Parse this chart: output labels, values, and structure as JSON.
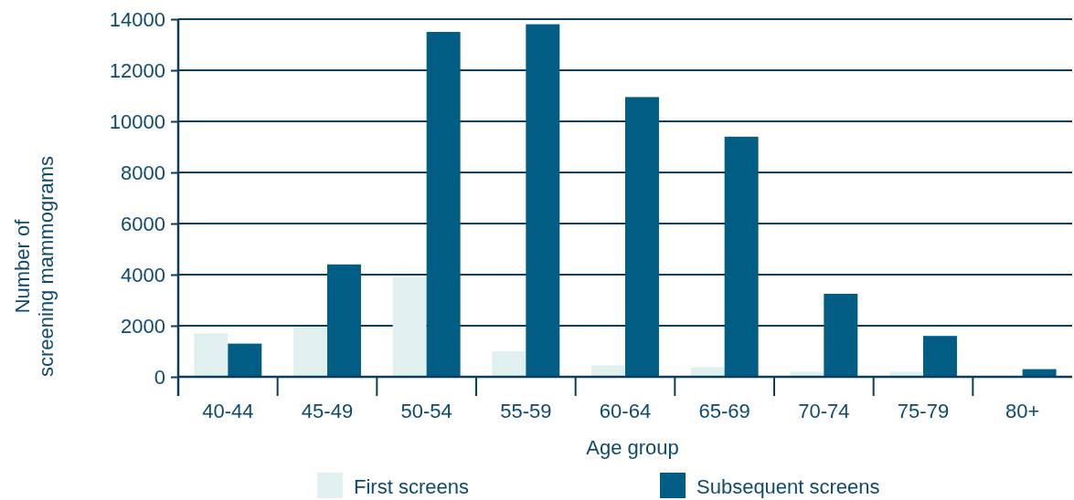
{
  "chart_data": {
    "type": "bar",
    "xlabel": "Age group",
    "ylabel": "Number of screening mammograms",
    "categories": [
      "40-44",
      "45-49",
      "50-54",
      "55-59",
      "60-64",
      "65-69",
      "70-74",
      "75-79",
      "80+"
    ],
    "series": [
      {
        "name": "First screens",
        "color": "#dff0ee",
        "values": [
          1700,
          1950,
          3900,
          1000,
          450,
          380,
          200,
          200,
          0
        ]
      },
      {
        "name": "Subsequent screens",
        "color": "#025d84",
        "values": [
          1300,
          4400,
          13500,
          13800,
          10950,
          9400,
          3250,
          1600,
          300
        ]
      }
    ],
    "ylim": [
      0,
      14000
    ],
    "yticks": [
      0,
      2000,
      4000,
      6000,
      8000,
      10000,
      12000,
      14000
    ],
    "grid": "y",
    "legend": "bottom"
  }
}
